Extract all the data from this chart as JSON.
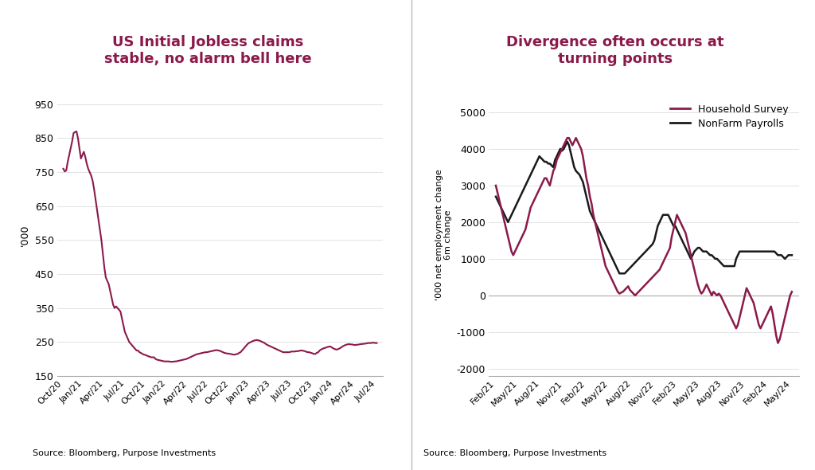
{
  "title1": "US Initial Jobless claims\nstable, no alarm bell here",
  "title2": "Divergence often occurs at\nturning points",
  "source_text": "Source: Bloomberg, Purpose Investments",
  "title_color": "#8B1A4A",
  "line_color1": "#8B1A4A",
  "line_color_household": "#8B1A4A",
  "line_color_nonfarm": "#1a1a1a",
  "ylabel1": "'000",
  "ylabel2": "'000 net employment change\n6m change",
  "ylim1": [
    150,
    980
  ],
  "ylim2": [
    -2200,
    5500
  ],
  "yticks1": [
    150,
    250,
    350,
    450,
    550,
    650,
    750,
    850,
    950
  ],
  "yticks2": [
    -2000,
    -1000,
    0,
    1000,
    2000,
    3000,
    4000,
    5000
  ],
  "xticks1": [
    "Oct/20",
    "Jan/21",
    "Apr/21",
    "Jul/21",
    "Oct/21",
    "Jan/22",
    "Apr/22",
    "Jul/22",
    "Oct/22",
    "Jan/23",
    "Apr/23",
    "Jul/23",
    "Oct/23",
    "Jan/24",
    "Apr/24",
    "Jul/24"
  ],
  "xticks2": [
    "Feb/21",
    "May/21",
    "Aug/21",
    "Nov/21",
    "Feb/22",
    "May/22",
    "Aug/22",
    "Nov/22",
    "Feb/23",
    "May/23",
    "Aug/23",
    "Nov/23",
    "Feb/24",
    "May/24"
  ],
  "legend_labels": [
    "Household Survey",
    "NonFarm Payrolls"
  ],
  "jobless_y": [
    760,
    752,
    755,
    780,
    800,
    820,
    840,
    865,
    868,
    870,
    850,
    820,
    790,
    800,
    810,
    795,
    775,
    760,
    750,
    740,
    725,
    700,
    670,
    640,
    610,
    580,
    550,
    510,
    470,
    440,
    430,
    420,
    400,
    380,
    360,
    350,
    355,
    350,
    345,
    340,
    320,
    300,
    280,
    270,
    260,
    250,
    245,
    240,
    235,
    230,
    225,
    225,
    220,
    218,
    215,
    213,
    212,
    210,
    208,
    207,
    205,
    205,
    205,
    200,
    198,
    197,
    196,
    195,
    194,
    193,
    193,
    193,
    193,
    192,
    192,
    192,
    193,
    193,
    194,
    195,
    196,
    197,
    198,
    199,
    200,
    202,
    204,
    206,
    208,
    210,
    212,
    214,
    215,
    216,
    217,
    218,
    219,
    220,
    220,
    221,
    222,
    223,
    224,
    225,
    226,
    226,
    225,
    224,
    222,
    220,
    218,
    217,
    216,
    216,
    215,
    214,
    213,
    213,
    214,
    215,
    218,
    220,
    225,
    230,
    235,
    240,
    245,
    248,
    250,
    252,
    254,
    255,
    256,
    255,
    254,
    252,
    250,
    248,
    245,
    242,
    240,
    238,
    236,
    234,
    232,
    230,
    228,
    226,
    224,
    222,
    220,
    220,
    220,
    220,
    220,
    221,
    222,
    222,
    222,
    223,
    223,
    224,
    225,
    225,
    224,
    223,
    221,
    220,
    220,
    218,
    217,
    215,
    215,
    218,
    220,
    225,
    228,
    230,
    232,
    233,
    235,
    236,
    237,
    235,
    232,
    230,
    228,
    228,
    230,
    232,
    235,
    238,
    240,
    242,
    243,
    244,
    243,
    243,
    242,
    241,
    242,
    242,
    243,
    244,
    244,
    245,
    245,
    246,
    247,
    247,
    247,
    248,
    248,
    247,
    247
  ],
  "household_y": [
    3000,
    2800,
    2600,
    2400,
    2200,
    2000,
    1800,
    1600,
    1400,
    1200,
    1100,
    1200,
    1300,
    1400,
    1500,
    1600,
    1700,
    1800,
    2000,
    2200,
    2400,
    2500,
    2600,
    2700,
    2800,
    2900,
    3000,
    3100,
    3200,
    3200,
    3100,
    3000,
    3200,
    3400,
    3500,
    3700,
    3800,
    3900,
    4000,
    4100,
    4200,
    4300,
    4300,
    4200,
    4100,
    4200,
    4300,
    4200,
    4100,
    4000,
    3800,
    3500,
    3200,
    3000,
    2700,
    2500,
    2200,
    2000,
    1800,
    1600,
    1400,
    1200,
    1000,
    800,
    700,
    600,
    500,
    400,
    300,
    200,
    100,
    50,
    80,
    100,
    150,
    200,
    250,
    150,
    100,
    50,
    0,
    50,
    100,
    150,
    200,
    250,
    300,
    350,
    400,
    450,
    500,
    550,
    600,
    650,
    700,
    800,
    900,
    1000,
    1100,
    1200,
    1300,
    1600,
    1800,
    2000,
    2200,
    2100,
    2000,
    1900,
    1800,
    1700,
    1500,
    1300,
    1100,
    900,
    700,
    500,
    300,
    150,
    50,
    100,
    200,
    300,
    200,
    100,
    0,
    100,
    50,
    0,
    50,
    0,
    -100,
    -200,
    -300,
    -400,
    -500,
    -600,
    -700,
    -800,
    -900,
    -800,
    -600,
    -400,
    -200,
    0,
    200,
    100,
    0,
    -100,
    -200,
    -400,
    -600,
    -800,
    -900,
    -800,
    -700,
    -600,
    -500,
    -400,
    -300,
    -500,
    -800,
    -1100,
    -1300,
    -1200,
    -1000,
    -800,
    -600,
    -400,
    -200,
    0,
    100,
    50,
    0
  ],
  "nonfarm_y": [
    2700,
    2600,
    2500,
    2400,
    2300,
    2200,
    2100,
    2000,
    2100,
    2200,
    2300,
    2400,
    2500,
    2600,
    2700,
    2800,
    2900,
    3000,
    3100,
    3200,
    3300,
    3400,
    3500,
    3600,
    3700,
    3800,
    3750,
    3700,
    3650,
    3650,
    3600,
    3600,
    3550,
    3500,
    3700,
    3800,
    3900,
    4000,
    3950,
    4000,
    4100,
    4200,
    4100,
    3900,
    3700,
    3500,
    3400,
    3350,
    3300,
    3200,
    3100,
    2900,
    2700,
    2500,
    2300,
    2200,
    2100,
    2000,
    1900,
    1800,
    1700,
    1600,
    1500,
    1400,
    1300,
    1200,
    1100,
    1000,
    900,
    800,
    700,
    600,
    600,
    600,
    600,
    650,
    700,
    750,
    800,
    850,
    900,
    950,
    1000,
    1050,
    1100,
    1150,
    1200,
    1250,
    1300,
    1350,
    1400,
    1500,
    1700,
    1900,
    2000,
    2100,
    2200,
    2200,
    2200,
    2200,
    2100,
    2000,
    1900,
    1900,
    1800,
    1700,
    1600,
    1500,
    1400,
    1300,
    1200,
    1100,
    1000,
    1100,
    1200,
    1250,
    1300,
    1300,
    1250,
    1200,
    1200,
    1200,
    1150,
    1100,
    1100,
    1050,
    1000,
    1000,
    950,
    900,
    850,
    800,
    800,
    800,
    800,
    800,
    800,
    800,
    1000,
    1100,
    1200,
    1200,
    1200,
    1200,
    1200,
    1200,
    1200,
    1200,
    1200,
    1200,
    1200,
    1200,
    1200,
    1200,
    1200,
    1200,
    1200,
    1200,
    1200,
    1200,
    1200,
    1150,
    1100,
    1100,
    1100,
    1050,
    1000,
    1050,
    1100,
    1100,
    1100
  ]
}
